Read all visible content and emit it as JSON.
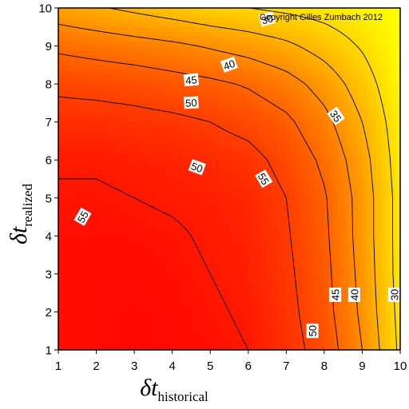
{
  "chart_data": {
    "type": "heatmap",
    "variant": "filled-contour",
    "copyright": "Copyright Gilles Zumbach 2012",
    "xlabel": {
      "symbol": "δt",
      "subscript": "historical"
    },
    "ylabel": {
      "symbol": "δt",
      "subscript": "realized"
    },
    "xlim": [
      1,
      10
    ],
    "ylim": [
      1,
      10
    ],
    "x_ticks": [
      "1",
      "2",
      "3",
      "4",
      "5",
      "6",
      "7",
      "8",
      "9",
      "10"
    ],
    "y_ticks": [
      "1",
      "2",
      "3",
      "4",
      "5",
      "6",
      "7",
      "8",
      "9",
      "10"
    ],
    "colormap": {
      "low": "#ffff00",
      "high": "#ff0000",
      "range": [
        25,
        58
      ]
    },
    "x": [
      1,
      2,
      3,
      4,
      5,
      6,
      7,
      8,
      9,
      10
    ],
    "y": [
      1,
      2,
      3,
      4,
      5,
      6,
      7,
      8,
      9,
      10
    ],
    "z": [
      [
        56,
        56.5,
        57,
        56.5,
        56,
        55,
        52,
        48,
        40,
        29
      ],
      [
        56,
        56.5,
        57,
        56.5,
        55.5,
        54.5,
        51.5,
        47,
        39,
        28.5
      ],
      [
        56,
        56.5,
        56.5,
        56,
        55,
        54,
        51,
        46.5,
        38.5,
        28
      ],
      [
        56,
        56,
        56,
        55.5,
        54.5,
        53.5,
        50.5,
        46,
        38,
        28
      ],
      [
        55.5,
        55.5,
        55,
        54.5,
        54,
        53,
        50,
        45.5,
        38,
        28
      ],
      [
        54.5,
        54.5,
        54,
        53.5,
        52.5,
        51.5,
        48.5,
        44,
        37,
        27.5
      ],
      [
        52,
        52,
        51.5,
        51,
        50,
        48.5,
        46,
        41.5,
        35,
        27
      ],
      [
        49,
        48.5,
        48,
        47,
        46,
        44.5,
        42,
        38,
        32.5,
        26
      ],
      [
        44,
        43,
        42,
        41,
        39.5,
        38,
        36,
        33,
        29.5,
        25
      ],
      [
        37,
        35.5,
        34,
        32.5,
        31,
        30,
        29,
        28,
        26.5,
        25
      ]
    ],
    "contour_levels": [
      30,
      35,
      40,
      45,
      50,
      55
    ],
    "contour_labels": [
      {
        "text": "30",
        "x": 6.5,
        "y": 9.7,
        "angle": -15
      },
      {
        "text": "40",
        "x": 5.5,
        "y": 8.5,
        "angle": -20
      },
      {
        "text": "45",
        "x": 4.5,
        "y": 8.1,
        "angle": -5
      },
      {
        "text": "50",
        "x": 4.5,
        "y": 7.5,
        "angle": -3
      },
      {
        "text": "35",
        "x": 8.3,
        "y": 7.15,
        "angle": 55
      },
      {
        "text": "50",
        "x": 4.65,
        "y": 5.8,
        "angle": 20
      },
      {
        "text": "55",
        "x": 6.4,
        "y": 5.5,
        "angle": 60
      },
      {
        "text": "55",
        "x": 1.65,
        "y": 4.5,
        "angle": -60
      },
      {
        "text": "45",
        "x": 8.3,
        "y": 2.45,
        "angle": -90
      },
      {
        "text": "40",
        "x": 8.8,
        "y": 2.45,
        "angle": -90
      },
      {
        "text": "30",
        "x": 9.85,
        "y": 2.45,
        "angle": -90
      },
      {
        "text": "50",
        "x": 7.7,
        "y": 1.5,
        "angle": -90
      }
    ],
    "grid": false
  }
}
